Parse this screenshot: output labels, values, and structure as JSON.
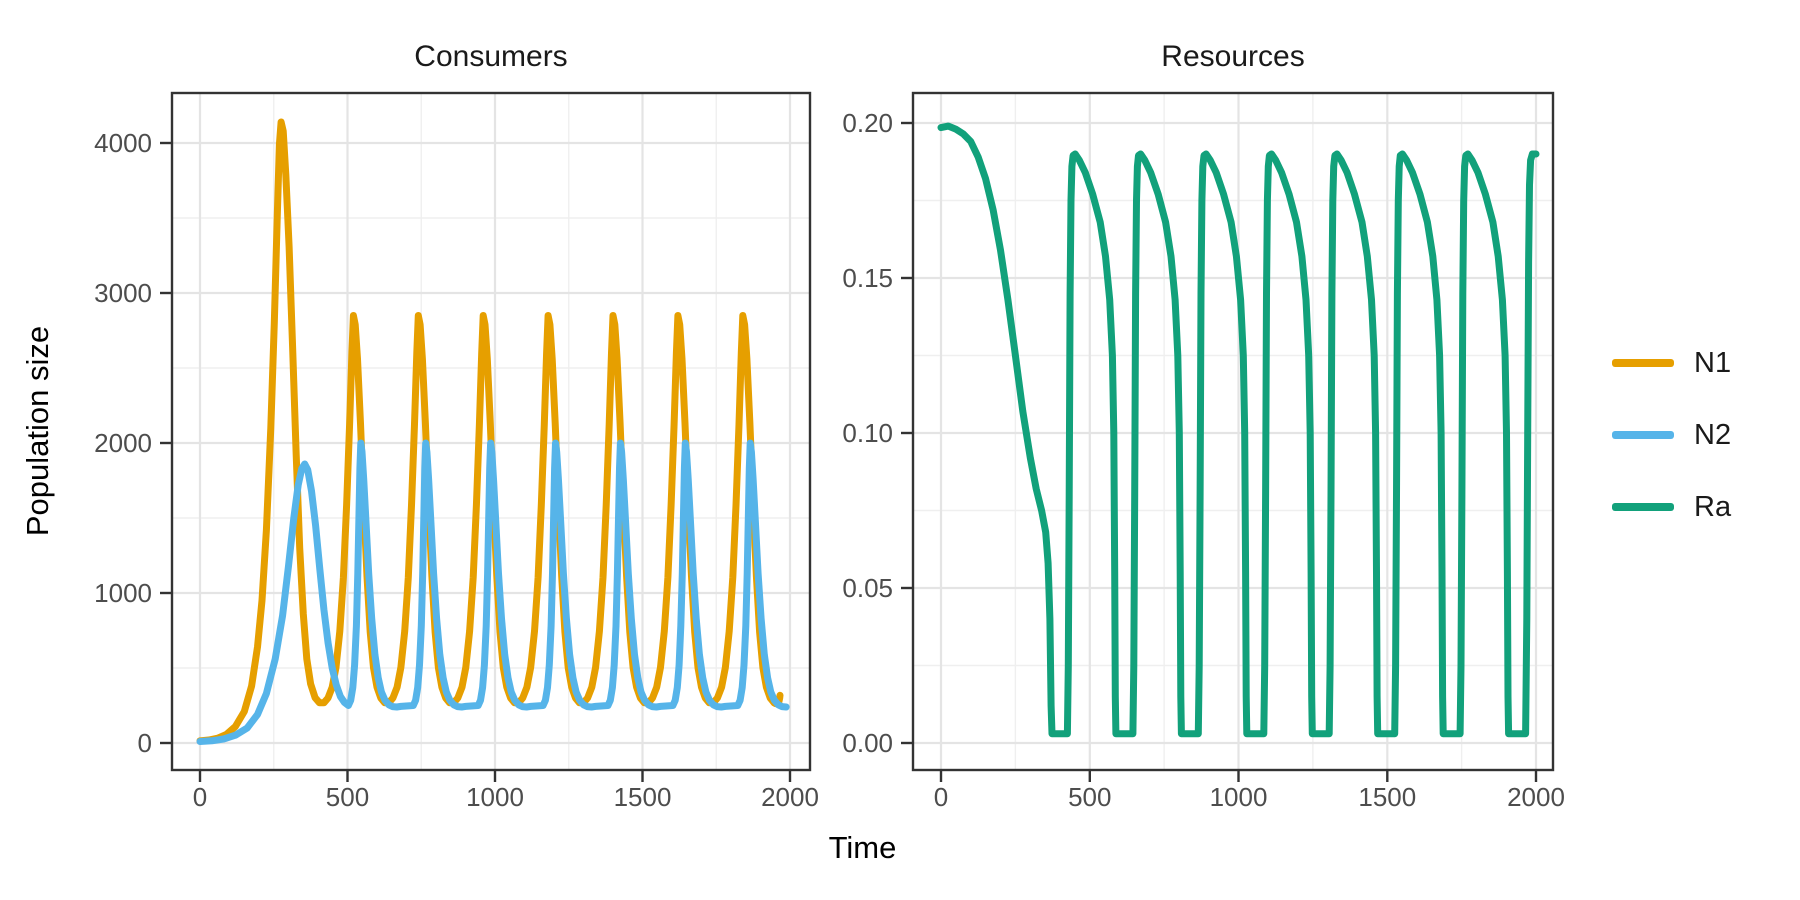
{
  "figure": {
    "axis_labels": {
      "x": "Time",
      "y_left": "Population size"
    },
    "colors": {
      "n1": "#E69F00",
      "n2": "#56B4E9",
      "ra": "#12A17B",
      "grid_major": "#E4E4E4",
      "grid_minor": "#EFEFEF",
      "panel_border": "#333333",
      "tick_mark": "#333333",
      "axis_text": "#4D4D4D",
      "title_text": "#1A1A1A",
      "background": "#FFFFFF"
    }
  },
  "legend": {
    "position": "right",
    "items": [
      {
        "label": "N1",
        "color_key": "n1"
      },
      {
        "label": "N2",
        "color_key": "n2"
      },
      {
        "label": "Ra",
        "color_key": "ra"
      }
    ]
  },
  "chart_data": [
    {
      "panel": "consumers",
      "title": "Consumers",
      "type": "line",
      "xlabel": "Time",
      "ylabel": "Population size",
      "xlim": [
        0,
        2000
      ],
      "ylim": [
        0,
        4150
      ],
      "grid": "on",
      "x_ticks": [
        0,
        500,
        1000,
        1500,
        2000
      ],
      "x_tick_labels": [
        "0",
        "500",
        "1000",
        "1500",
        "2000"
      ],
      "y_ticks": [
        0,
        1000,
        2000,
        3000,
        4000
      ],
      "y_tick_labels": [
        "0",
        "1000",
        "2000",
        "3000",
        "4000"
      ],
      "series": [
        {
          "name": "N1",
          "color_key": "n1",
          "summary": {
            "initial_value": 15,
            "first_peak": {
              "t": 275,
              "value": 4140
            },
            "steady_peak_value": 2850,
            "steady_trough_value": 260,
            "period": 220
          },
          "points_initial": [
            [
              0,
              15
            ],
            [
              30,
              20
            ],
            [
              60,
              32
            ],
            [
              90,
              58
            ],
            [
              120,
              110
            ],
            [
              150,
              210
            ],
            [
              175,
              380
            ],
            [
              195,
              640
            ],
            [
              210,
              950
            ],
            [
              225,
              1420
            ],
            [
              240,
              2100
            ],
            [
              252,
              2800
            ],
            [
              262,
              3520
            ],
            [
              269,
              3990
            ],
            [
              275,
              4140
            ],
            [
              282,
              4080
            ],
            [
              291,
              3790
            ],
            [
              302,
              3310
            ],
            [
              314,
              2640
            ],
            [
              326,
              1920
            ],
            [
              338,
              1300
            ],
            [
              350,
              860
            ],
            [
              362,
              560
            ],
            [
              375,
              395
            ],
            [
              390,
              302
            ],
            [
              405,
              268
            ]
          ],
          "points_cycle": {
            "anchors": [
              520,
              740,
              960,
              1180,
              1400,
              1620,
              1840
            ],
            "offsets": [
              [
                -100,
                268
              ],
              [
                -86,
                300
              ],
              [
                -72,
                372
              ],
              [
                -59,
                505
              ],
              [
                -46,
                745
              ],
              [
                -34,
                1105
              ],
              [
                -23,
                1585
              ],
              [
                -13,
                2125
              ],
              [
                -5,
                2600
              ],
              [
                0,
                2850
              ],
              [
                6,
                2790
              ],
              [
                14,
                2560
              ],
              [
                24,
                2130
              ],
              [
                35,
                1600
              ],
              [
                46,
                1110
              ],
              [
                57,
                740
              ],
              [
                68,
                502
              ],
              [
                80,
                372
              ],
              [
                93,
                300
              ],
              [
                106,
                268
              ]
            ]
          },
          "points_end": [
            [
              1951,
              263
            ],
            [
              1957,
              261
            ],
            [
              1962,
              272
            ],
            [
              1965,
              300
            ],
            [
              1966,
              318
            ]
          ]
        },
        {
          "name": "N2",
          "color_key": "n2",
          "summary": {
            "initial_value": 10,
            "first_peak": {
              "t": 355,
              "value": 1860
            },
            "steady_peak_value": 2000,
            "steady_trough_value": 240,
            "period": 220,
            "lag_after_N1": 25
          },
          "points_initial": [
            [
              0,
              10
            ],
            [
              40,
              15
            ],
            [
              80,
              27
            ],
            [
              120,
              52
            ],
            [
              160,
              100
            ],
            [
              195,
              190
            ],
            [
              225,
              330
            ],
            [
              255,
              560
            ],
            [
              280,
              850
            ],
            [
              300,
              1180
            ],
            [
              318,
              1500
            ],
            [
              333,
              1720
            ],
            [
              345,
              1830
            ],
            [
              355,
              1860
            ],
            [
              365,
              1822
            ],
            [
              378,
              1680
            ],
            [
              392,
              1450
            ],
            [
              406,
              1160
            ],
            [
              420,
              890
            ],
            [
              434,
              670
            ],
            [
              448,
              500
            ],
            [
              462,
              386
            ],
            [
              476,
              310
            ],
            [
              490,
              270
            ],
            [
              503,
              250
            ]
          ],
          "points_cycle": {
            "anchors": [
              545,
              765,
              985,
              1205,
              1425,
              1645,
              1865
            ],
            "offsets": [
              [
                -42,
                250
              ],
              [
                -34,
                285
              ],
              [
                -27,
                370
              ],
              [
                -21,
                520
              ],
              [
                -15,
                780
              ],
              [
                -10,
                1130
              ],
              [
                -6,
                1530
              ],
              [
                -3,
                1830
              ],
              [
                0,
                2000
              ],
              [
                4,
                1940
              ],
              [
                10,
                1760
              ],
              [
                18,
                1460
              ],
              [
                27,
                1130
              ],
              [
                37,
                830
              ],
              [
                48,
                590
              ],
              [
                59,
                435
              ],
              [
                70,
                340
              ],
              [
                82,
                285
              ],
              [
                95,
                255
              ],
              [
                108,
                243
              ],
              [
                122,
                240
              ],
              [
                136,
                244
              ]
            ]
          },
          "points_end": []
        }
      ]
    },
    {
      "panel": "resources",
      "title": "Resources",
      "type": "line",
      "xlabel": "Time",
      "ylabel": "",
      "xlim": [
        0,
        2000
      ],
      "ylim": [
        0,
        0.2
      ],
      "grid": "on",
      "x_ticks": [
        0,
        500,
        1000,
        1500,
        2000
      ],
      "x_tick_labels": [
        "0",
        "500",
        "1000",
        "1500",
        "2000"
      ],
      "y_ticks": [
        0,
        0.05,
        0.1,
        0.15,
        0.2
      ],
      "y_tick_labels": [
        "0.00",
        "0.05",
        "0.10",
        "0.15",
        "0.20"
      ],
      "series": [
        {
          "name": "Ra",
          "color_key": "ra",
          "summary": {
            "initial_value": 0.199,
            "first_crash_to_zero_t": 370,
            "spike_peak_value": 0.19,
            "zero_floor_value": 0,
            "period": 220
          },
          "points_initial": [
            [
              0,
              0.1985
            ],
            [
              25,
              0.199
            ],
            [
              50,
              0.198
            ],
            [
              75,
              0.1965
            ],
            [
              100,
              0.194
            ],
            [
              125,
              0.189
            ],
            [
              150,
              0.182
            ],
            [
              175,
              0.172
            ],
            [
              200,
              0.159
            ],
            [
              225,
              0.143
            ],
            [
              250,
              0.125
            ],
            [
              275,
              0.107
            ],
            [
              300,
              0.092
            ],
            [
              320,
              0.082
            ],
            [
              338,
              0.075
            ],
            [
              352,
              0.068
            ],
            [
              360,
              0.058
            ],
            [
              366,
              0.04
            ],
            [
              370,
              0.012
            ],
            [
              373,
              0.003
            ]
          ],
          "points_cycle": {
            "anchors": [
              425,
              645,
              865,
              1085,
              1305,
              1525,
              1745
            ],
            "offsets": [
              [
                0,
                0.003
              ],
              [
                3,
                0.025
              ],
              [
                6,
                0.08
              ],
              [
                9,
                0.145
              ],
              [
                12,
                0.175
              ],
              [
                15,
                0.186
              ],
              [
                19,
                0.1895
              ],
              [
                26,
                0.19
              ],
              [
                40,
                0.188
              ],
              [
                60,
                0.184
              ],
              [
                85,
                0.177
              ],
              [
                110,
                0.168
              ],
              [
                128,
                0.157
              ],
              [
                142,
                0.143
              ],
              [
                151,
                0.125
              ],
              [
                156,
                0.1
              ],
              [
                159,
                0.055
              ],
              [
                161,
                0.015
              ],
              [
                163,
                0.003
              ]
            ]
          },
          "points_end": [
            [
              1965,
              0.003
            ],
            [
              1969,
              0.04
            ],
            [
              1972,
              0.1
            ],
            [
              1975,
              0.155
            ],
            [
              1978,
              0.18
            ],
            [
              1982,
              0.188
            ],
            [
              1988,
              0.19
            ],
            [
              2000,
              0.19
            ]
          ]
        }
      ]
    }
  ]
}
